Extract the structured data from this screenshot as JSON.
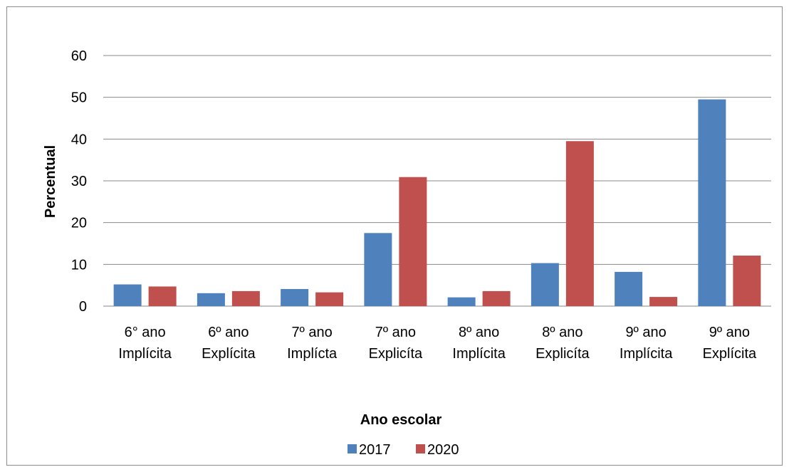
{
  "chart_data": {
    "type": "bar",
    "categories": [
      [
        "6° ano",
        "Implícita"
      ],
      [
        "6º ano",
        "Explícita"
      ],
      [
        "7º ano",
        "Implícta"
      ],
      [
        "7º ano",
        "Explicíta"
      ],
      [
        "8º ano",
        "Implícita"
      ],
      [
        "8º ano",
        "Explicíta"
      ],
      [
        "9º ano",
        "Implícita"
      ],
      [
        "9º ano",
        "Explícita"
      ]
    ],
    "series": [
      {
        "name": "2017",
        "color": "#4f81bd",
        "values": [
          5.2,
          3.1,
          4.1,
          17.5,
          2.1,
          10.3,
          8.2,
          49.5
        ]
      },
      {
        "name": "2020",
        "color": "#c0504d",
        "values": [
          4.7,
          3.6,
          3.3,
          30.9,
          3.6,
          39.5,
          2.2,
          12.1
        ]
      }
    ],
    "xlabel": "Ano escolar",
    "ylabel": "Percentual",
    "ylim": [
      0,
      60
    ],
    "yticks": [
      0,
      10,
      20,
      30,
      40,
      50,
      60
    ],
    "grid": true,
    "legend": "bottom"
  }
}
